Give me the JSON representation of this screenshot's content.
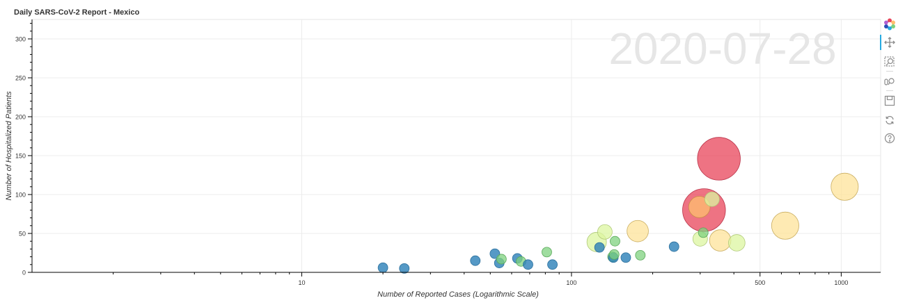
{
  "chart_data": {
    "type": "scatter",
    "title": "Daily SARS-CoV-2 Report - Mexico",
    "date_watermark": "2020-07-28",
    "xlabel": "Number of Reported Cases (Logarithmic Scale)",
    "ylabel": "Number of Hospitalized Patients",
    "x_scale": "log",
    "xlim": [
      1,
      1400
    ],
    "ylim": [
      0,
      325
    ],
    "x_ticks": [
      10,
      100,
      500,
      1000
    ],
    "x_tick_labels": [
      "10",
      "100",
      "500",
      "1000"
    ],
    "y_ticks": [
      0,
      50,
      100,
      150,
      200,
      250,
      300
    ],
    "y_tick_labels": [
      "0",
      "50",
      "100",
      "150",
      "200",
      "250",
      "300"
    ],
    "grid": true,
    "colors": {
      "blue": "#2a7fb8",
      "green": "#7fd17f",
      "lightgreen": "#dcf5a0",
      "yellow": "#fee39a",
      "orange": "#fdbf6f",
      "red": "#e8445a"
    },
    "points": [
      {
        "x": 20,
        "y": 6,
        "size": 1,
        "color": "blue"
      },
      {
        "x": 24,
        "y": 5,
        "size": 1,
        "color": "blue"
      },
      {
        "x": 44,
        "y": 15,
        "size": 1,
        "color": "blue"
      },
      {
        "x": 52,
        "y": 24,
        "size": 1,
        "color": "blue"
      },
      {
        "x": 54,
        "y": 12,
        "size": 1,
        "color": "blue"
      },
      {
        "x": 55,
        "y": 17,
        "size": 1,
        "color": "green"
      },
      {
        "x": 63,
        "y": 18,
        "size": 1,
        "color": "blue"
      },
      {
        "x": 65,
        "y": 14,
        "size": 1,
        "color": "green"
      },
      {
        "x": 69,
        "y": 10,
        "size": 1,
        "color": "blue"
      },
      {
        "x": 81,
        "y": 26,
        "size": 1,
        "color": "green"
      },
      {
        "x": 85,
        "y": 10,
        "size": 1,
        "color": "blue"
      },
      {
        "x": 124,
        "y": 39,
        "size": 2,
        "color": "lightgreen"
      },
      {
        "x": 127,
        "y": 32,
        "size": 1,
        "color": "blue"
      },
      {
        "x": 133,
        "y": 52,
        "size": 1.5,
        "color": "lightgreen"
      },
      {
        "x": 142,
        "y": 20,
        "size": 1,
        "color": "green"
      },
      {
        "x": 143,
        "y": 19,
        "size": 1,
        "color": "blue"
      },
      {
        "x": 144,
        "y": 23,
        "size": 1,
        "color": "green"
      },
      {
        "x": 145,
        "y": 40,
        "size": 1,
        "color": "green"
      },
      {
        "x": 159,
        "y": 19,
        "size": 1,
        "color": "blue"
      },
      {
        "x": 176,
        "y": 53,
        "size": 2.2,
        "color": "yellow"
      },
      {
        "x": 180,
        "y": 22,
        "size": 1,
        "color": "green"
      },
      {
        "x": 240,
        "y": 33,
        "size": 1,
        "color": "blue"
      },
      {
        "x": 300,
        "y": 43,
        "size": 1.5,
        "color": "lightgreen"
      },
      {
        "x": 308,
        "y": 51,
        "size": 1,
        "color": "green"
      },
      {
        "x": 310,
        "y": 80,
        "size": 4.4,
        "color": "red"
      },
      {
        "x": 298,
        "y": 84,
        "size": 2.2,
        "color": "orange"
      },
      {
        "x": 332,
        "y": 94,
        "size": 1.5,
        "color": "lightgreen"
      },
      {
        "x": 352,
        "y": 146,
        "size": 4.4,
        "color": "red"
      },
      {
        "x": 356,
        "y": 41,
        "size": 2.2,
        "color": "yellow"
      },
      {
        "x": 410,
        "y": 38,
        "size": 1.7,
        "color": "lightgreen"
      },
      {
        "x": 620,
        "y": 60,
        "size": 2.8,
        "color": "yellow"
      },
      {
        "x": 1030,
        "y": 110,
        "size": 2.8,
        "color": "yellow"
      }
    ]
  },
  "toolbar": {
    "tools": [
      {
        "name": "bokeh-logo-icon"
      },
      {
        "name": "pan-icon"
      },
      {
        "name": "box-zoom-icon"
      },
      {
        "name": "wheel-zoom-icon"
      },
      {
        "name": "save-icon"
      },
      {
        "name": "reset-icon"
      },
      {
        "name": "help-icon"
      }
    ]
  }
}
